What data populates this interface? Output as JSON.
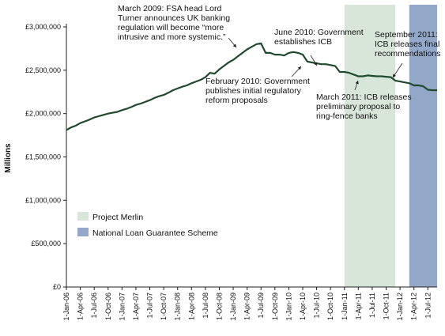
{
  "chart_data": {
    "type": "line",
    "ylabel": "Millions",
    "ylim": [
      0,
      3000000
    ],
    "y_ticks": [
      "£0",
      "£500,000",
      "£1,000,000",
      "£1,500,000",
      "£2,000,000",
      "£2,500,000",
      "£3,000,000"
    ],
    "y_tick_values": [
      0,
      500000,
      1000000,
      1500000,
      2000000,
      2500000,
      3000000
    ],
    "x_ticks": [
      "1-Jan-06",
      "1-Apr-06",
      "1-Jul-06",
      "1-Oct-06",
      "1-Jan-07",
      "1-Apr-07",
      "1-Jul-07",
      "1-Oct-07",
      "1-Jan-08",
      "1-Apr-08",
      "1-Jul-08",
      "1-Oct-08",
      "1-Jan-09",
      "1-Apr-09",
      "1-Jul-09",
      "1-Oct-09",
      "1-Jan-10",
      "1-Apr-10",
      "1-Jul-10",
      "1-Oct-10",
      "1-Jan-11",
      "1-Apr-11",
      "1-Jul-11",
      "1-Oct-11",
      "1-Jan-12",
      "1-Apr-12",
      "1-Jul-12"
    ],
    "x_range": [
      "2006-01",
      "2012-09"
    ],
    "grid": false,
    "series": [
      {
        "color": "#1f4a2e",
        "points": [
          [
            "2006-01",
            1810000
          ],
          [
            "2006-02",
            1840000
          ],
          [
            "2006-03",
            1860000
          ],
          [
            "2006-04",
            1890000
          ],
          [
            "2006-05",
            1910000
          ],
          [
            "2006-06",
            1930000
          ],
          [
            "2006-07",
            1955000
          ],
          [
            "2006-08",
            1970000
          ],
          [
            "2006-09",
            1985000
          ],
          [
            "2006-10",
            2000000
          ],
          [
            "2006-11",
            2010000
          ],
          [
            "2006-12",
            2020000
          ],
          [
            "2007-01",
            2040000
          ],
          [
            "2007-02",
            2055000
          ],
          [
            "2007-03",
            2075000
          ],
          [
            "2007-04",
            2100000
          ],
          [
            "2007-05",
            2115000
          ],
          [
            "2007-06",
            2135000
          ],
          [
            "2007-07",
            2155000
          ],
          [
            "2007-08",
            2180000
          ],
          [
            "2007-09",
            2200000
          ],
          [
            "2007-10",
            2215000
          ],
          [
            "2007-11",
            2240000
          ],
          [
            "2007-12",
            2270000
          ],
          [
            "2008-01",
            2290000
          ],
          [
            "2008-02",
            2310000
          ],
          [
            "2008-03",
            2325000
          ],
          [
            "2008-04",
            2350000
          ],
          [
            "2008-05",
            2370000
          ],
          [
            "2008-06",
            2390000
          ],
          [
            "2008-07",
            2420000
          ],
          [
            "2008-08",
            2470000
          ],
          [
            "2008-09",
            2460000
          ],
          [
            "2008-10",
            2510000
          ],
          [
            "2008-11",
            2550000
          ],
          [
            "2008-12",
            2590000
          ],
          [
            "2009-01",
            2620000
          ],
          [
            "2009-02",
            2660000
          ],
          [
            "2009-03",
            2700000
          ],
          [
            "2009-04",
            2740000
          ],
          [
            "2009-05",
            2770000
          ],
          [
            "2009-06",
            2800000
          ],
          [
            "2009-07",
            2810000
          ],
          [
            "2009-08",
            2700000
          ],
          [
            "2009-09",
            2700000
          ],
          [
            "2009-10",
            2680000
          ],
          [
            "2009-11",
            2680000
          ],
          [
            "2009-12",
            2670000
          ],
          [
            "2010-01",
            2700000
          ],
          [
            "2010-02",
            2710000
          ],
          [
            "2010-03",
            2700000
          ],
          [
            "2010-04",
            2680000
          ],
          [
            "2010-05",
            2600000
          ],
          [
            "2010-06",
            2590000
          ],
          [
            "2010-07",
            2580000
          ],
          [
            "2010-08",
            2570000
          ],
          [
            "2010-09",
            2570000
          ],
          [
            "2010-10",
            2560000
          ],
          [
            "2010-11",
            2550000
          ],
          [
            "2010-12",
            2480000
          ],
          [
            "2011-01",
            2480000
          ],
          [
            "2011-02",
            2470000
          ],
          [
            "2011-03",
            2450000
          ],
          [
            "2011-04",
            2430000
          ],
          [
            "2011-05",
            2430000
          ],
          [
            "2011-06",
            2440000
          ],
          [
            "2011-07",
            2435000
          ],
          [
            "2011-08",
            2430000
          ],
          [
            "2011-09",
            2430000
          ],
          [
            "2011-10",
            2425000
          ],
          [
            "2011-11",
            2420000
          ],
          [
            "2011-12",
            2380000
          ],
          [
            "2012-01",
            2370000
          ],
          [
            "2012-02",
            2360000
          ],
          [
            "2012-03",
            2350000
          ],
          [
            "2012-04",
            2325000
          ],
          [
            "2012-05",
            2325000
          ],
          [
            "2012-06",
            2315000
          ],
          [
            "2012-07",
            2275000
          ],
          [
            "2012-08",
            2270000
          ],
          [
            "2012-09",
            2270000
          ]
        ]
      }
    ],
    "shaded_periods": [
      {
        "name": "Project Merlin",
        "color": "#d7e6d9",
        "start": "2011-01",
        "end": "2011-12"
      },
      {
        "name": "National Loan Guarantee Scheme",
        "color": "#93a8c8",
        "start": "2012-03",
        "end": "2012-09"
      }
    ],
    "legend": {
      "placement": "lower-left",
      "items": [
        {
          "label": "Project Merlin",
          "color": "#d7e6d9"
        },
        {
          "label": "National Loan Guarantee Scheme",
          "color": "#93a8c8"
        }
      ]
    },
    "annotations": [
      {
        "id": "a1",
        "date": "2009-07",
        "lines": [
          "March 2009:  FSA head Lord",
          "Turner announces UK banking",
          "regulation will become “more",
          "intrusive and more systemic.”"
        ]
      },
      {
        "id": "a2",
        "date": "2010-06",
        "lines": [
          "June 2010: Government",
          "establishes ICB"
        ]
      },
      {
        "id": "a3",
        "date": "2010-03",
        "lines": [
          "February 2010: Government",
          "publishes initial regulatory",
          "reform proposals"
        ]
      },
      {
        "id": "a4",
        "date": "2011-12",
        "lines": [
          "September 2011:",
          "ICB releases final",
          "recommendations"
        ]
      },
      {
        "id": "a5",
        "date": "2011-03",
        "lines": [
          "March 2011: ICB releases",
          "preliminary proposal to",
          "ring-fence banks"
        ]
      }
    ]
  }
}
